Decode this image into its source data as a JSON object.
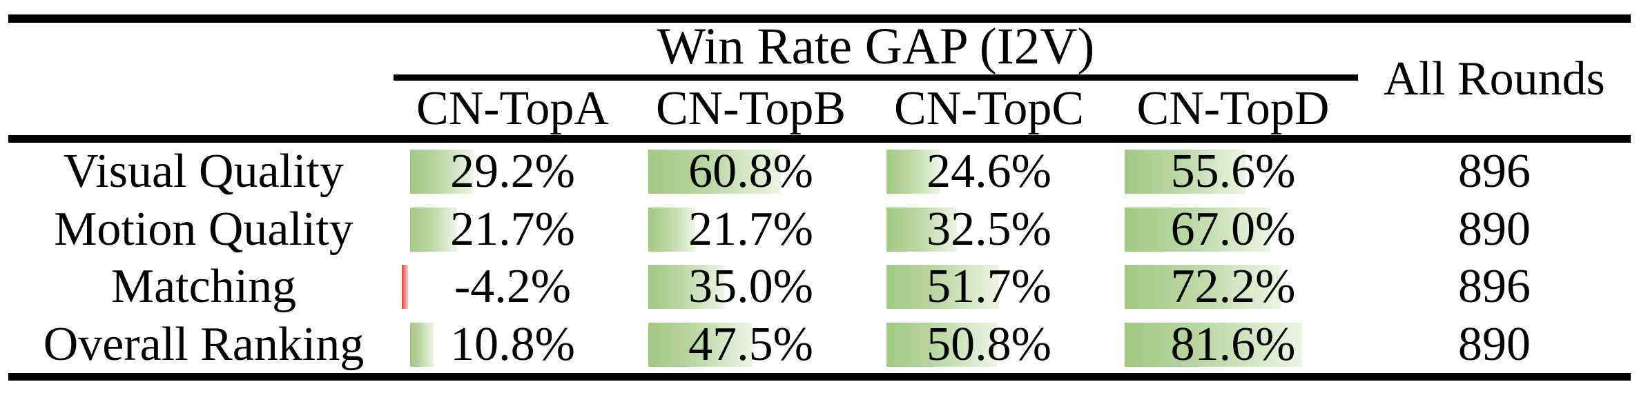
{
  "table": {
    "group_header": "Win Rate GAP (I2V)",
    "all_rounds_label": "All Rounds",
    "columns": [
      "CN-TopA",
      "CN-TopB",
      "CN-TopC",
      "CN-TopD"
    ],
    "rows": [
      {
        "label": "Visual Quality",
        "cells": [
          {
            "value": 29.2,
            "text": "29.2%"
          },
          {
            "value": 60.8,
            "text": "60.8%"
          },
          {
            "value": 24.6,
            "text": "24.6%"
          },
          {
            "value": 55.6,
            "text": "55.6%"
          }
        ],
        "all_rounds": "896"
      },
      {
        "label": "Motion Quality",
        "cells": [
          {
            "value": 21.7,
            "text": "21.7%"
          },
          {
            "value": 21.7,
            "text": "21.7%"
          },
          {
            "value": 32.5,
            "text": "32.5%"
          },
          {
            "value": 67.0,
            "text": "67.0%"
          }
        ],
        "all_rounds": "890"
      },
      {
        "label": "Matching",
        "cells": [
          {
            "value": -4.2,
            "text": "-4.2%"
          },
          {
            "value": 35.0,
            "text": "35.0%"
          },
          {
            "value": 51.7,
            "text": "51.7%"
          },
          {
            "value": 72.2,
            "text": "72.2%"
          }
        ],
        "all_rounds": "896"
      },
      {
        "label": "Overall Ranking",
        "cells": [
          {
            "value": 10.8,
            "text": "10.8%"
          },
          {
            "value": 47.5,
            "text": "47.5%"
          },
          {
            "value": 50.8,
            "text": "50.8%"
          },
          {
            "value": 81.6,
            "text": "81.6%"
          }
        ],
        "all_rounds": "890"
      }
    ],
    "colors": {
      "bar_gradient_start": "#a3c883",
      "bar_gradient_mid": "#bcd7a3",
      "bar_gradient_end": "#eef4e6",
      "bar_negative": "#ef3f3f",
      "bar_negative_light": "#ffc6c6",
      "rule_color": "#000000"
    }
  },
  "chart_data": {
    "type": "table",
    "title": "Win Rate GAP (I2V)",
    "row_labels": [
      "Visual Quality",
      "Motion Quality",
      "Matching",
      "Overall Ranking"
    ],
    "columns": [
      "CN-TopA",
      "CN-TopB",
      "CN-TopC",
      "CN-TopD",
      "All Rounds"
    ],
    "series": [
      {
        "name": "CN-TopA",
        "unit": "%",
        "values": [
          29.2,
          21.7,
          -4.2,
          10.8
        ]
      },
      {
        "name": "CN-TopB",
        "unit": "%",
        "values": [
          60.8,
          21.7,
          35.0,
          47.5
        ]
      },
      {
        "name": "CN-TopC",
        "unit": "%",
        "values": [
          24.6,
          32.5,
          51.7,
          50.8
        ]
      },
      {
        "name": "CN-TopD",
        "unit": "%",
        "values": [
          55.6,
          67.0,
          72.2,
          81.6
        ]
      },
      {
        "name": "All Rounds",
        "unit": "rounds",
        "values": [
          896,
          890,
          896,
          890
        ]
      }
    ],
    "legend_position": "none",
    "grid": false,
    "notes": "Green in-cell data bars proportional to win-rate gap (about 3.15 px per percent); negative value shown as thin red bar."
  }
}
